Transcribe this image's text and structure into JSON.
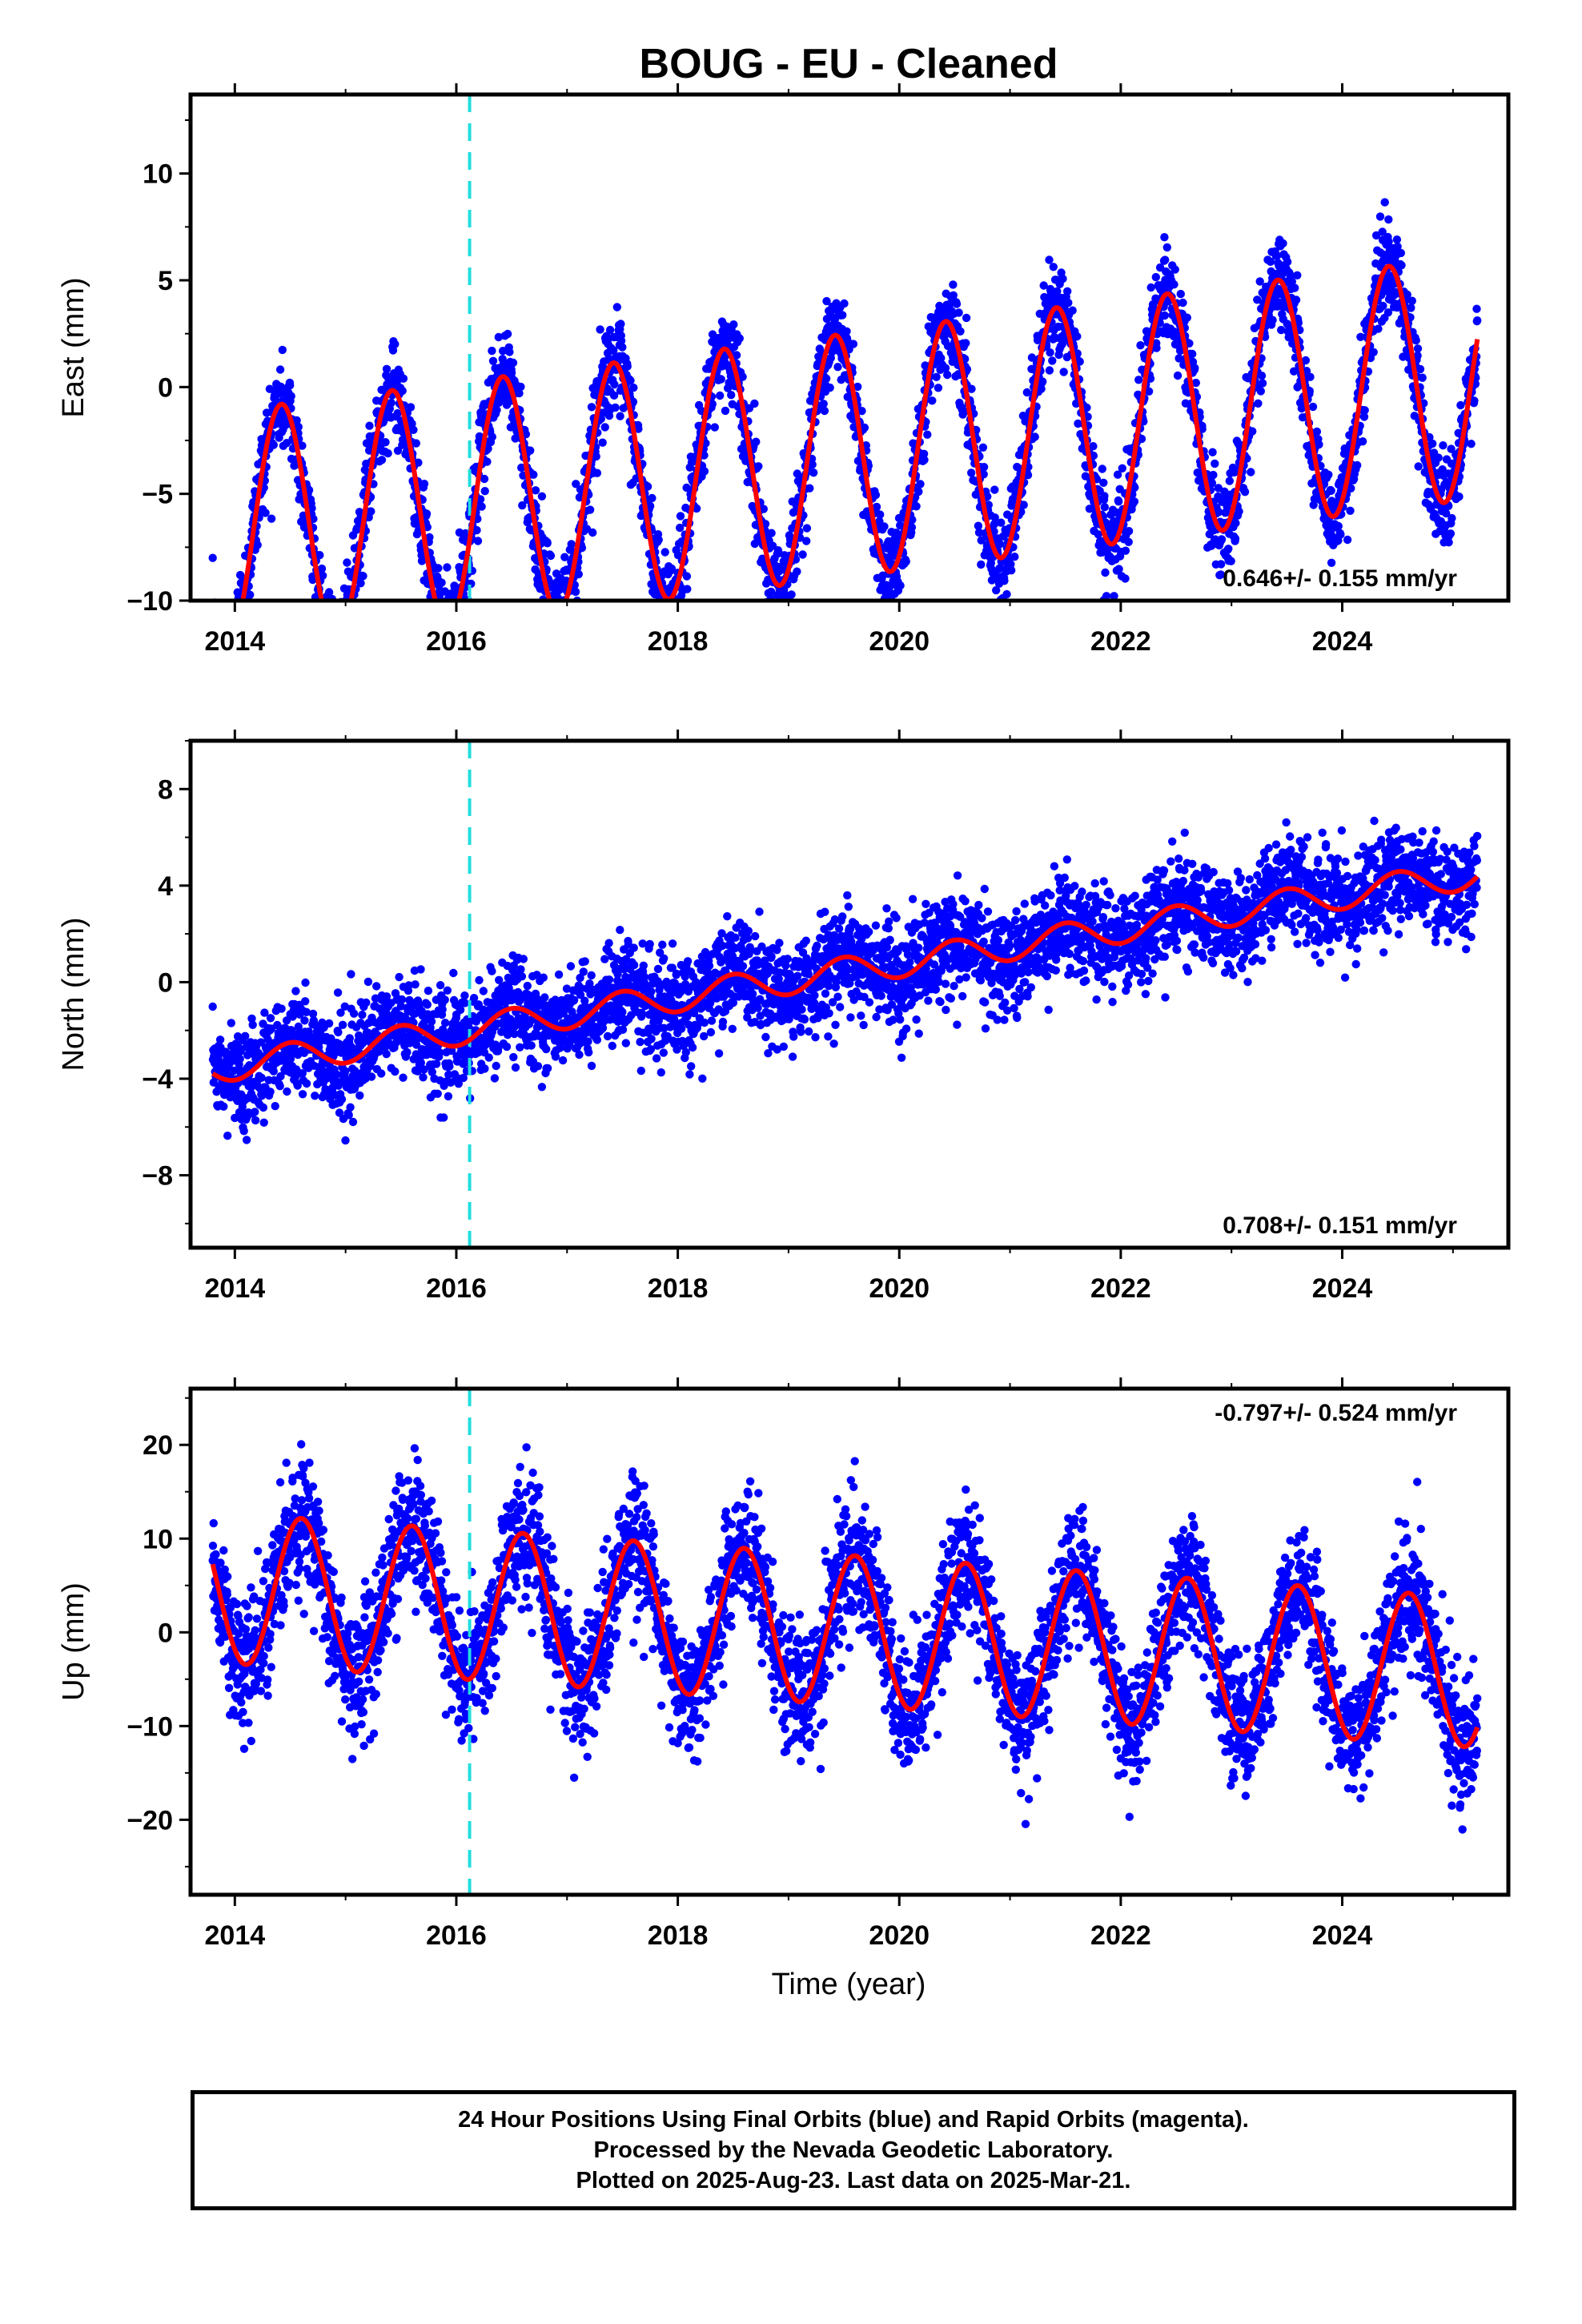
{
  "colors": {
    "final_orbits": "#0000ff",
    "fit": "#ff0000",
    "equipment_change": "#22dddd",
    "frame": "#000000"
  },
  "chart_data": {
    "title": "BOUG  - EU - Cleaned",
    "xlabel": "Time (year)",
    "x_ticks": [
      "2014",
      "2016",
      "2018",
      "2020",
      "2022",
      "2024"
    ],
    "xlim": [
      2013.6,
      2025.5
    ],
    "equipment_change_year": 2016.12,
    "panels": [
      {
        "name": "east",
        "type": "scatter",
        "ylabel": "East (mm)",
        "ylim": [
          -10,
          13.7
        ],
        "yticks": [
          10,
          5,
          0,
          -5,
          -10
        ],
        "rate_text": "0.646+/- 0.155 mm/yr",
        "rate_position": "bottom-right",
        "fit": {
          "offset": -6.9,
          "trend": 0.646,
          "amp": 5.7,
          "peak_phase": 0.42,
          "t0": 2013.8,
          "t1": 2025.22
        },
        "noise": 1.1,
        "series": [
          {
            "name": "Final Orbits (blue)",
            "style": "points"
          },
          {
            "name": "Model fit",
            "style": "line"
          }
        ]
      },
      {
        "name": "north",
        "type": "scatter",
        "ylabel": "North (mm)",
        "ylim": [
          -11,
          10
        ],
        "yticks": [
          8,
          4,
          0,
          -4,
          -8
        ],
        "rate_text": "0.708+/- 0.151 mm/yr",
        "rate_position": "bottom-right",
        "fit": {
          "offset": -3.6,
          "trend": 0.708,
          "amp": 0.6,
          "peak_phase": 0.5,
          "t0": 2013.8,
          "t1": 2025.22
        },
        "noise": 1.0,
        "series": [
          {
            "name": "Final Orbits (blue)",
            "style": "points"
          },
          {
            "name": "Model fit",
            "style": "line"
          }
        ]
      },
      {
        "name": "up",
        "type": "scatter",
        "ylabel": "Up (mm)",
        "ylim": [
          -28,
          26
        ],
        "yticks": [
          20,
          10,
          0,
          -10,
          -20
        ],
        "rate_text": "-0.797+/- 0.524 mm/yr",
        "rate_position": "top-right",
        "fit": {
          "offset": 4.8,
          "trend": -0.797,
          "amp": 8.0,
          "peak_phase": 0.6,
          "t0": 2013.8,
          "t1": 2025.22
        },
        "noise": 3.4,
        "series": [
          {
            "name": "Final Orbits (blue)",
            "style": "points"
          },
          {
            "name": "Model fit",
            "style": "line"
          }
        ]
      }
    ]
  },
  "caption": {
    "line1": "24 Hour Positions Using Final Orbits (blue) and Rapid Orbits (magenta).",
    "line2": "Processed by the Nevada Geodetic Laboratory.",
    "line3": "Plotted on 2025-Aug-23. Last data on 2025-Mar-21."
  }
}
